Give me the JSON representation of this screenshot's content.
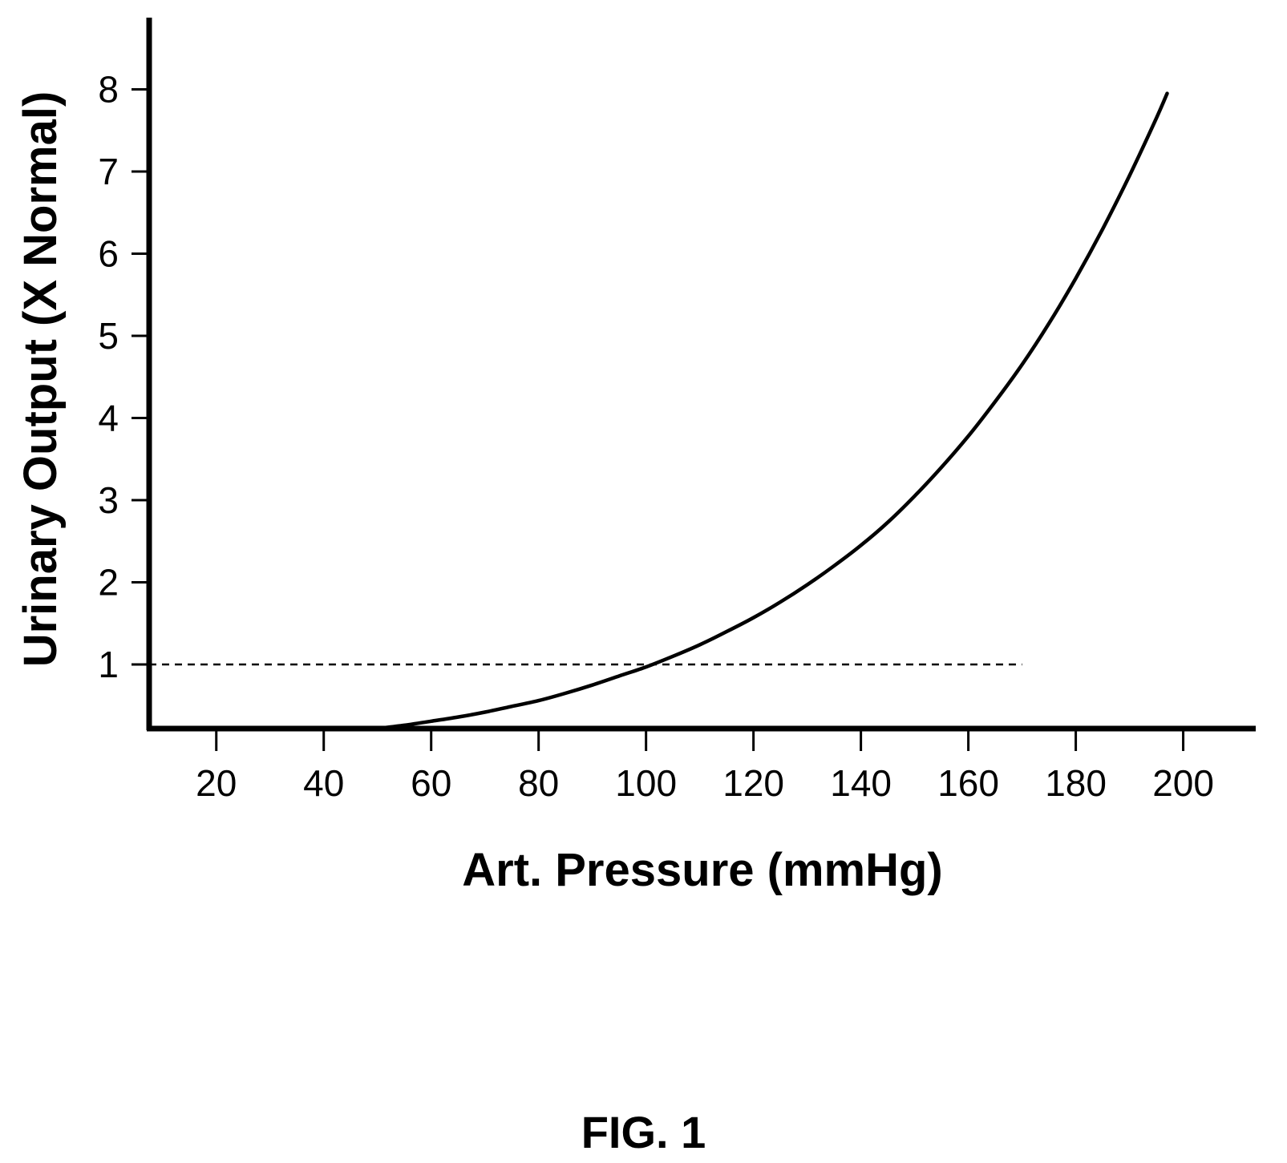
{
  "caption": "FIG. 1",
  "chart_data": {
    "type": "line",
    "xlabel": "Art. Pressure (mmHg)",
    "ylabel": "Urinary Output (X Normal)",
    "xlim": [
      7.5,
      213.5
    ],
    "ylim": [
      0.22,
      8.6
    ],
    "xticks": [
      20,
      40,
      60,
      80,
      100,
      120,
      140,
      160,
      180,
      200
    ],
    "yticks": [
      1,
      2,
      3,
      4,
      5,
      6,
      7,
      8
    ],
    "grid": false,
    "series": [
      {
        "style": "solid",
        "color": "#000000",
        "x": [
          50,
          55,
          60,
          65,
          70,
          75,
          80,
          85,
          90,
          95,
          100,
          105,
          110,
          115,
          120,
          125,
          130,
          135,
          140,
          145,
          150,
          155,
          160,
          165,
          170,
          175,
          180,
          185,
          190,
          195,
          197
        ],
        "y": [
          0.22,
          0.26,
          0.31,
          0.36,
          0.42,
          0.49,
          0.56,
          0.65,
          0.75,
          0.86,
          0.97,
          1.1,
          1.24,
          1.4,
          1.57,
          1.76,
          1.97,
          2.2,
          2.45,
          2.73,
          3.05,
          3.4,
          3.78,
          4.2,
          4.65,
          5.15,
          5.7,
          6.3,
          6.95,
          7.65,
          7.95
        ]
      }
    ],
    "reference_line": {
      "style": "dashed",
      "color": "#000000",
      "y": 1,
      "x_from": 7.5,
      "x_to": 170
    }
  }
}
